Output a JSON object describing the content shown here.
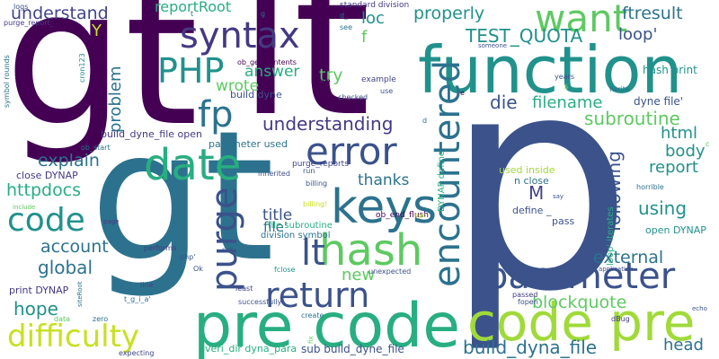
{
  "words": [
    {
      "text": "gt",
      "color": "#440154"
    },
    {
      "text": "lt",
      "color": "#440154"
    },
    {
      "text": "p",
      "color": "#3b528b"
    },
    {
      "text": "gt",
      "color": "#2c728e"
    },
    {
      "text": "function",
      "color": "#21918c"
    },
    {
      "text": "pre code",
      "color": "#28ae80"
    },
    {
      "text": "code pre",
      "color": "#a0da39"
    },
    {
      "text": "parameter",
      "color": "#3b528b"
    },
    {
      "text": "keys",
      "color": "#2c728e"
    },
    {
      "text": "hash",
      "color": "#5ec962"
    },
    {
      "text": "date",
      "color": "#28ae80"
    },
    {
      "text": "error",
      "color": "#3b528b"
    },
    {
      "text": "return",
      "color": "#3b528b"
    },
    {
      "text": "syntax",
      "color": "#443983"
    },
    {
      "text": "want",
      "color": "#5ec962"
    },
    {
      "text": "PHP",
      "color": "#21918c"
    },
    {
      "text": "code",
      "color": "#21918c"
    },
    {
      "text": "difficulty",
      "color": "#c8e020"
    },
    {
      "text": "lt",
      "color": "#3b528b"
    },
    {
      "text": "fp",
      "color": "#2c728e"
    },
    {
      "text": "purge",
      "color": "#3b528b"
    },
    {
      "text": "encountered",
      "color": "#2c728e"
    },
    {
      "text": "TEST_QUOTA",
      "color": "#21918c"
    },
    {
      "text": "understanding",
      "color": "#443983"
    },
    {
      "text": "build_dyna_file",
      "color": "#2c728e"
    },
    {
      "text": "blockquote",
      "color": "#5ec962"
    },
    {
      "text": "subroutine",
      "color": "#5ec962"
    },
    {
      "text": "using",
      "color": "#21918c"
    },
    {
      "text": "external",
      "color": "#2c728e"
    },
    {
      "text": "global",
      "color": "#2c728e"
    },
    {
      "text": "account",
      "color": "#2c728e"
    },
    {
      "text": "hope",
      "color": "#21918c"
    },
    {
      "text": "new",
      "color": "#5ec962"
    },
    {
      "text": "httpdocs",
      "color": "#28ae80"
    },
    {
      "text": "explain",
      "color": "#2c728e"
    },
    {
      "text": "understand",
      "color": "#414487"
    },
    {
      "text": "reportRoot",
      "color": "#28ae80"
    },
    {
      "text": "properly",
      "color": "#21918c"
    },
    {
      "text": "ftresult",
      "color": "#2c728e"
    },
    {
      "text": "loop'",
      "color": "#3b528b"
    },
    {
      "text": "loc",
      "color": "#21918c"
    },
    {
      "text": "try",
      "color": "#5ec962"
    },
    {
      "text": "die",
      "color": "#3b528b"
    },
    {
      "text": "filename",
      "color": "#28ae80"
    },
    {
      "text": "answer",
      "color": "#28ae80"
    },
    {
      "text": "wrote",
      "color": "#5ec962"
    },
    {
      "text": "problem",
      "color": "#2c728e"
    },
    {
      "text": "body",
      "color": "#21918c"
    },
    {
      "text": "html",
      "color": "#21918c"
    },
    {
      "text": "report",
      "color": "#21918c"
    },
    {
      "text": "following",
      "color": "#3b528b"
    },
    {
      "text": "thanks",
      "color": "#2c728e"
    },
    {
      "text": "title",
      "color": "#3b528b"
    },
    {
      "text": "M",
      "color": "#414487"
    },
    {
      "text": "head",
      "color": "#2c728e"
    },
    {
      "text": "file'",
      "color": "#2c728e"
    },
    {
      "text": "Y",
      "color": "#c8e020"
    },
    {
      "text": "f",
      "color": "#5ec962"
    },
    {
      "text": "hash print",
      "color": "#21918c"
    },
    {
      "text": "dyne file'",
      "color": "#3b528b"
    },
    {
      "text": "open DYNAP",
      "color": "#21918c"
    },
    {
      "text": "print DYNAP",
      "color": "#443983"
    },
    {
      "text": "close DYNAP",
      "color": "#443983"
    },
    {
      "text": "sub build_dyne_file",
      "color": "#3b528b"
    },
    {
      "text": "veri_dir dyna_para",
      "color": "#28ae80"
    },
    {
      "text": "build_dyne_file open",
      "color": "#443983"
    },
    {
      "text": "parameter used",
      "color": "#2c728e"
    },
    {
      "text": "build dyne",
      "color": "#3b528b"
    },
    {
      "text": "standard division",
      "color": "#443983"
    },
    {
      "text": "ob_get_contents",
      "color": "#440154"
    },
    {
      "text": "division symbol",
      "color": "#2c728e"
    },
    {
      "text": "file subroutine",
      "color": "#28ae80"
    },
    {
      "text": "used inside",
      "color": "#a0da39"
    },
    {
      "text": "n close",
      "color": "#2c728e"
    },
    {
      "text": "define _",
      "color": "#3b528b"
    },
    {
      "text": "pass",
      "color": "#3b528b"
    },
    {
      "text": "purge_reports",
      "color": "#414487"
    },
    {
      "text": "ob_end_flush",
      "color": "#440154"
    },
    {
      "text": "DYNAP define",
      "color": "#28ae80"
    },
    {
      "text": "loop' iterates",
      "color": "#28ae80"
    },
    {
      "text": "fwrite",
      "color": "#2c728e"
    },
    {
      "text": "horrible",
      "color": "#2c728e"
    },
    {
      "text": "someone",
      "color": "#3b528b"
    },
    {
      "text": "years",
      "color": "#3b528b"
    },
    {
      "text": "example",
      "color": "#414487"
    },
    {
      "text": "Parse",
      "color": "#440154"
    },
    {
      "text": "checked",
      "color": "#3b528b"
    },
    {
      "text": "use",
      "color": "#3b528b"
    },
    {
      "text": "logs",
      "color": "#3b528b"
    },
    {
      "text": "purge_report_",
      "color": "#443983"
    },
    {
      "text": "symbol rounds",
      "color": "#2c728e"
    },
    {
      "text": "cron123",
      "color": "#21918c"
    },
    {
      "text": "ob_start",
      "color": "#2c728e"
    },
    {
      "text": "inherited",
      "color": "#3b528b"
    },
    {
      "text": "run",
      "color": "#3b528b"
    },
    {
      "text": "billing",
      "color": "#3b528b"
    },
    {
      "text": "billing!",
      "color": "#c8e020"
    },
    {
      "text": "include",
      "color": "#5ec962"
    },
    {
      "text": "page",
      "color": "#443983"
    },
    {
      "text": "performs",
      "color": "#443983"
    },
    {
      "text": "set",
      "color": "#3b528b"
    },
    {
      "text": "php'",
      "color": "#3b528b"
    },
    {
      "text": "Ok",
      "color": "#3b528b"
    },
    {
      "text": "line",
      "color": "#414487"
    },
    {
      "text": "t_g_i_a'",
      "color": "#2c728e"
    },
    {
      "text": "fclose",
      "color": "#21918c"
    },
    {
      "text": "application",
      "color": "#3b528b"
    },
    {
      "text": "least",
      "color": "#414487"
    },
    {
      "text": "successfully",
      "color": "#3b528b"
    },
    {
      "text": "unexpected",
      "color": "#3b528b"
    },
    {
      "text": "passed",
      "color": "#443983"
    },
    {
      "text": "fopen",
      "color": "#3b528b"
    },
    {
      "text": "echo",
      "color": "#3b528b"
    },
    {
      "text": "dBug",
      "color": "#443983"
    },
    {
      "text": "data",
      "color": "#5ec962"
    },
    {
      "text": "zero",
      "color": "#2c728e"
    },
    {
      "text": "siteRoot",
      "color": "#2c728e"
    },
    {
      "text": "create",
      "color": "#2c728e"
    },
    {
      "text": "fix",
      "color": "#5ec962"
    },
    {
      "text": "expecting",
      "color": "#414487"
    },
    {
      "text": "say",
      "color": "#3b528b"
    },
    {
      "text": "ago",
      "color": "#c8e020"
    },
    {
      "text": "see",
      "color": "#2c728e"
    },
    {
      "text": "d_",
      "color": "#2c728e"
    },
    {
      "text": "g",
      "color": "#2c728e"
    },
    {
      "text": "t",
      "color": "#2c728e"
    },
    {
      "text": "t",
      "color": "#2c728e"
    },
    {
      "text": "s",
      "color": "#a0da39"
    },
    {
      "text": "c",
      "color": "#5ec962"
    },
    {
      "text": "d",
      "color": "#2c728e"
    },
    {
      "text": "e",
      "color": "#440154"
    }
  ]
}
